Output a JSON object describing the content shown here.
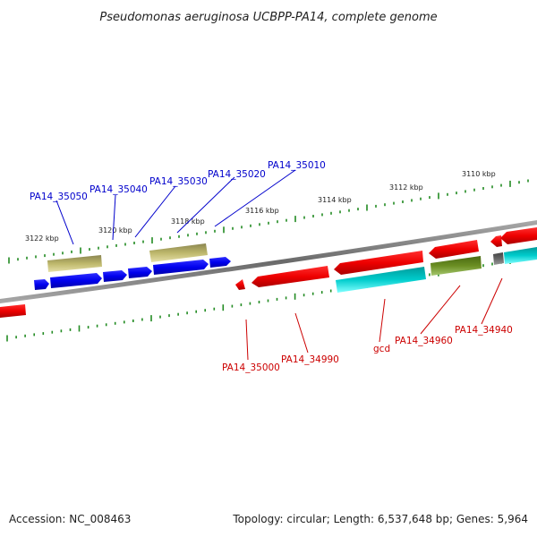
{
  "title": "Pseudomonas aeruginosa UCBPP-PA14, complete genome",
  "scale_labels": [
    "3122 kbp",
    "3120 kbp",
    "3118 kbp",
    "3116 kbp",
    "3114 kbp",
    "3112 kbp",
    "3110 kbp"
  ],
  "forward_gene_labels": [
    "PA14_35050",
    "PA14_35040",
    "PA14_35030",
    "PA14_35020",
    "PA14_35010"
  ],
  "reverse_gene_labels": [
    "PA14_35000",
    "PA14_34990",
    "gcd",
    "PA14_34960",
    "PA14_34940"
  ],
  "colors": {
    "forward_cds": "#0000ee",
    "reverse_cds": "#ee0000",
    "feature_tan": "#bdb76b",
    "feature_cyan": "#00cccc",
    "feature_olive": "#6b8e23",
    "feature_gray": "#666666",
    "backbone": "#888888",
    "ticks": "#228b22",
    "fwd_label": "#0000cc",
    "rev_label": "#cc0000"
  },
  "footer": {
    "accession": "Accession: NC_008463",
    "summary": "Topology: circular; Length: 6,537,648 bp; Genes: 5,964"
  }
}
